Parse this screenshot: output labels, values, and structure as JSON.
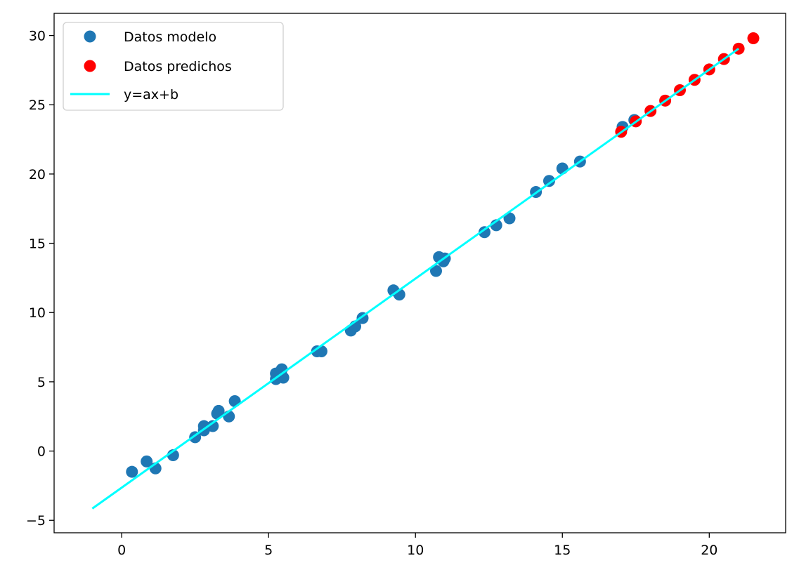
{
  "chart_data": {
    "type": "scatter",
    "title": "",
    "xlabel": "",
    "ylabel": "",
    "xlim": [
      -2.3,
      22.6
    ],
    "ylim": [
      -5.9,
      31.6
    ],
    "xticks": [
      0,
      5,
      10,
      15,
      20
    ],
    "yticks": [
      -5,
      0,
      5,
      10,
      15,
      20,
      25,
      30
    ],
    "grid": false,
    "legend_position": "upper-left",
    "series": [
      {
        "name": "Datos modelo",
        "kind": "scatter",
        "color": "#1f77b4",
        "points": [
          [
            0.35,
            -1.5
          ],
          [
            0.85,
            -0.75
          ],
          [
            1.15,
            -1.25
          ],
          [
            1.75,
            -0.3
          ],
          [
            2.5,
            1.0
          ],
          [
            2.8,
            1.5
          ],
          [
            2.8,
            1.8
          ],
          [
            3.1,
            1.8
          ],
          [
            3.25,
            2.7
          ],
          [
            3.3,
            2.9
          ],
          [
            3.65,
            2.5
          ],
          [
            3.85,
            3.6
          ],
          [
            5.25,
            5.2
          ],
          [
            5.25,
            5.6
          ],
          [
            5.45,
            5.9
          ],
          [
            5.5,
            5.3
          ],
          [
            6.65,
            7.2
          ],
          [
            6.8,
            7.2
          ],
          [
            7.8,
            8.7
          ],
          [
            7.95,
            9.0
          ],
          [
            8.2,
            9.6
          ],
          [
            9.25,
            11.6
          ],
          [
            9.45,
            11.3
          ],
          [
            10.7,
            13.0
          ],
          [
            10.8,
            14.0
          ],
          [
            10.95,
            13.7
          ],
          [
            11.0,
            13.9
          ],
          [
            12.35,
            15.8
          ],
          [
            12.75,
            16.3
          ],
          [
            13.2,
            16.8
          ],
          [
            14.1,
            18.7
          ],
          [
            14.55,
            19.5
          ],
          [
            15.0,
            20.4
          ],
          [
            15.6,
            20.9
          ],
          [
            17.05,
            23.4
          ],
          [
            17.45,
            23.9
          ]
        ]
      },
      {
        "name": "Datos predichos",
        "kind": "scatter",
        "color": "#ff0000",
        "points": [
          [
            17.0,
            23.05
          ],
          [
            17.5,
            23.8
          ],
          [
            18.0,
            24.55
          ],
          [
            18.5,
            25.3
          ],
          [
            19.0,
            26.05
          ],
          [
            19.5,
            26.8
          ],
          [
            20.0,
            27.55
          ],
          [
            20.5,
            28.3
          ],
          [
            21.0,
            29.05
          ],
          [
            21.5,
            29.8
          ]
        ]
      },
      {
        "name": "y=ax+b",
        "kind": "line",
        "color": "#00ffff",
        "points": [
          [
            -1.0,
            -4.15
          ],
          [
            21.0,
            29.05
          ]
        ]
      }
    ]
  }
}
